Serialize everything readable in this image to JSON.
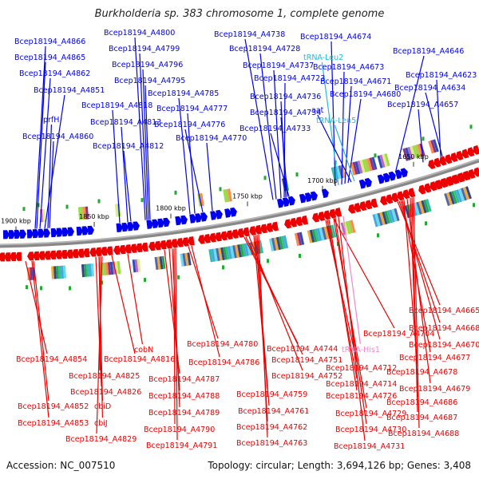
{
  "title": "Burkholderia sp. 383 chromosome 1, complete genome",
  "accession": "Accession: NC_007510",
  "summary": "Topology: circular; Length: 3,694,126 bp; Genes: 3,408",
  "colors": {
    "forward": "#0000ee",
    "reverse": "#ee0000",
    "trna_forward": "#22bbdd",
    "trna_reverse": "#ee88cc",
    "backbone": "#888888"
  },
  "kbp_marks": [
    "1900 kbp",
    "1850 kbp",
    "1800 kbp",
    "1750 kbp",
    "1700 kbp",
    "1650 kbp"
  ],
  "top_labels": [
    {
      "text": "Bcep18194_A4866",
      "type": "gene"
    },
    {
      "text": "Bcep18194_A4865",
      "type": "gene"
    },
    {
      "text": "Bcep18194_A4862",
      "type": "gene"
    },
    {
      "text": "Bcep18194_A4851",
      "type": "gene"
    },
    {
      "text": "prfH",
      "type": "gene"
    },
    {
      "text": "Bcep18194_A4860",
      "type": "gene"
    },
    {
      "text": "Bcep18194_A4800",
      "type": "gene"
    },
    {
      "text": "Bcep18194_A4799",
      "type": "gene"
    },
    {
      "text": "Bcep18194_A4796",
      "type": "gene"
    },
    {
      "text": "Bcep18194_A4795",
      "type": "gene"
    },
    {
      "text": "Bcep18194_A4818",
      "type": "gene"
    },
    {
      "text": "Bcep18194_A4813",
      "type": "gene"
    },
    {
      "text": "Bcep18194_A4812",
      "type": "gene"
    },
    {
      "text": "Bcep18194_A4785",
      "type": "gene"
    },
    {
      "text": "Bcep18194_A4777",
      "type": "gene"
    },
    {
      "text": "Bcep18194_A4776",
      "type": "gene"
    },
    {
      "text": "Bcep18194_A4770",
      "type": "gene"
    },
    {
      "text": "Bcep18194_A4738",
      "type": "gene"
    },
    {
      "text": "Bcep18194_A4728",
      "type": "gene"
    },
    {
      "text": "Bcep18194_A4737",
      "type": "gene"
    },
    {
      "text": "Bcep18194_A4723",
      "type": "gene"
    },
    {
      "text": "Bcep18194_A4736",
      "type": "gene"
    },
    {
      "text": "Bcep18194_A4734",
      "type": "gene"
    },
    {
      "text": "Bcep18194_A4733",
      "type": "gene"
    },
    {
      "text": "Bcep18194_A4674",
      "type": "gene"
    },
    {
      "text": "tRNA-Leu2",
      "type": "trna"
    },
    {
      "text": "Bcep18194_A4673",
      "type": "gene"
    },
    {
      "text": "Bcep18194_A4671",
      "type": "gene"
    },
    {
      "text": "Bcep18194_A4680",
      "type": "gene"
    },
    {
      "text": "aat",
      "type": "gene"
    },
    {
      "text": "tRNA-Leu5",
      "type": "trna"
    },
    {
      "text": "Bcep18194_A4646",
      "type": "gene"
    },
    {
      "text": "Bcep18194_A4623",
      "type": "gene"
    },
    {
      "text": "Bcep18194_A4634",
      "type": "gene"
    },
    {
      "text": "Bcep18194_A4657",
      "type": "gene"
    }
  ],
  "bottom_labels": [
    {
      "text": "cobN",
      "type": "gene"
    },
    {
      "text": "Bcep18194_A4854",
      "type": "gene"
    },
    {
      "text": "Bcep18194_A4816",
      "type": "gene"
    },
    {
      "text": "Bcep18194_A4825",
      "type": "gene"
    },
    {
      "text": "Bcep18194_A4826",
      "type": "gene"
    },
    {
      "text": "Bcep18194_A4852",
      "type": "gene"
    },
    {
      "text": "cbiD",
      "type": "gene"
    },
    {
      "text": "Bcep18194_A4853",
      "type": "gene"
    },
    {
      "text": "cbiJ",
      "type": "gene"
    },
    {
      "text": "Bcep18194_A4829",
      "type": "gene"
    },
    {
      "text": "Bcep18194_A4780",
      "type": "gene"
    },
    {
      "text": "Bcep18194_A4786",
      "type": "gene"
    },
    {
      "text": "Bcep18194_A4787",
      "type": "gene"
    },
    {
      "text": "Bcep18194_A4788",
      "type": "gene"
    },
    {
      "text": "Bcep18194_A4789",
      "type": "gene"
    },
    {
      "text": "Bcep18194_A4790",
      "type": "gene"
    },
    {
      "text": "Bcep18194_A4791",
      "type": "gene"
    },
    {
      "text": "Bcep18194_A4744",
      "type": "gene"
    },
    {
      "text": "Bcep18194_A4751",
      "type": "gene"
    },
    {
      "text": "Bcep18194_A4752",
      "type": "gene"
    },
    {
      "text": "Bcep18194_A4759",
      "type": "gene"
    },
    {
      "text": "Bcep18194_A4761",
      "type": "gene"
    },
    {
      "text": "Bcep18194_A4762",
      "type": "gene"
    },
    {
      "text": "Bcep18194_A4763",
      "type": "gene"
    },
    {
      "text": "Bcep18194_A4704",
      "type": "gene"
    },
    {
      "text": "tRNA-His1",
      "type": "trna"
    },
    {
      "text": "Bcep18194_A4712",
      "type": "gene"
    },
    {
      "text": "Bcep18194_A4714",
      "type": "gene"
    },
    {
      "text": "Bcep18194_A4726",
      "type": "gene"
    },
    {
      "text": "Bcep18194_A4729",
      "type": "gene"
    },
    {
      "text": "Bcep18194_A4730",
      "type": "gene"
    },
    {
      "text": "Bcep18194_A4731",
      "type": "gene"
    },
    {
      "text": "Bcep18194_A4665",
      "type": "gene"
    },
    {
      "text": "Bcep18194_A4668",
      "type": "gene"
    },
    {
      "text": "Bcep18194_A4670",
      "type": "gene"
    },
    {
      "text": "Bcep18194_A4677",
      "type": "gene"
    },
    {
      "text": "Bcep18194_A4678",
      "type": "gene"
    },
    {
      "text": "Bcep18194_A4679",
      "type": "gene"
    },
    {
      "text": "Bcep18194_A4686",
      "type": "gene"
    },
    {
      "text": "Bcep18194_A4687",
      "type": "gene"
    },
    {
      "text": "Bcep18194_A4688",
      "type": "gene"
    }
  ]
}
